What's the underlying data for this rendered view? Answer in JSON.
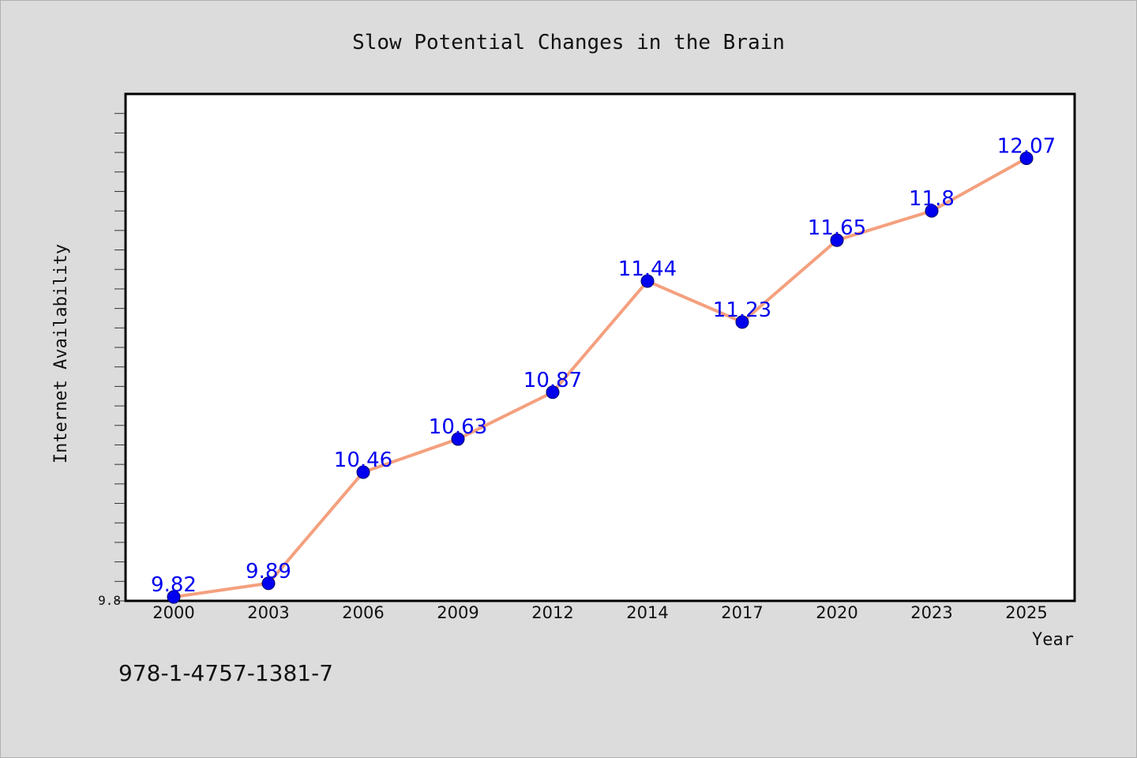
{
  "chart_data": {
    "type": "line",
    "title": "Slow Potential Changes in the Brain",
    "xlabel": "Year",
    "ylabel": "Internet Availability",
    "categories": [
      "2000",
      "2003",
      "2006",
      "2009",
      "2012",
      "2014",
      "2017",
      "2020",
      "2023",
      "2025"
    ],
    "values": [
      9.82,
      9.89,
      10.46,
      10.63,
      10.87,
      11.44,
      11.23,
      11.65,
      11.8,
      12.07
    ],
    "data_labels": [
      "9.82",
      "9.89",
      "10.46",
      "10.63",
      "10.87",
      "11.44",
      "11.23",
      "11.65",
      "11.8",
      "12.07"
    ],
    "yticks": [
      {
        "value": 9.8,
        "label": "9.8"
      }
    ],
    "ylim": [
      9.8,
      12.4
    ],
    "grid": false,
    "colors": {
      "line": "#f4a07e",
      "marker": "#0000ee",
      "label": "#0000ee"
    }
  },
  "footer": {
    "isbn": "978-1-4757-1381-7"
  }
}
